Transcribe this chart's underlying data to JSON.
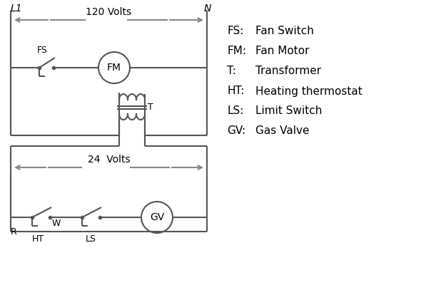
{
  "background_color": "#ffffff",
  "line_color": "#555555",
  "arrow_color": "#888888",
  "text_color": "#000000",
  "legend_items": [
    [
      "FS:  ",
      "Fan Switch"
    ],
    [
      "FM:",
      " Fan Motor"
    ],
    [
      "T:    ",
      "Transformer"
    ],
    [
      "HT:  ",
      "Heating thermostat"
    ],
    [
      "LS:  ",
      "Limit Switch"
    ],
    [
      "GV:  ",
      "Gas Valve"
    ]
  ],
  "L1_label": "L1",
  "N_label": "N",
  "volts120_label": "120 Volts",
  "volts24_label": "24  Volts",
  "T_label": "T",
  "FS_label": "FS",
  "FM_label": "FM",
  "R_label": "R",
  "W_label": "W",
  "HT_label": "HT",
  "LS_label": "LS",
  "GV_label": "GV",
  "figsize": [
    5.9,
    4.0
  ],
  "dpi": 100
}
